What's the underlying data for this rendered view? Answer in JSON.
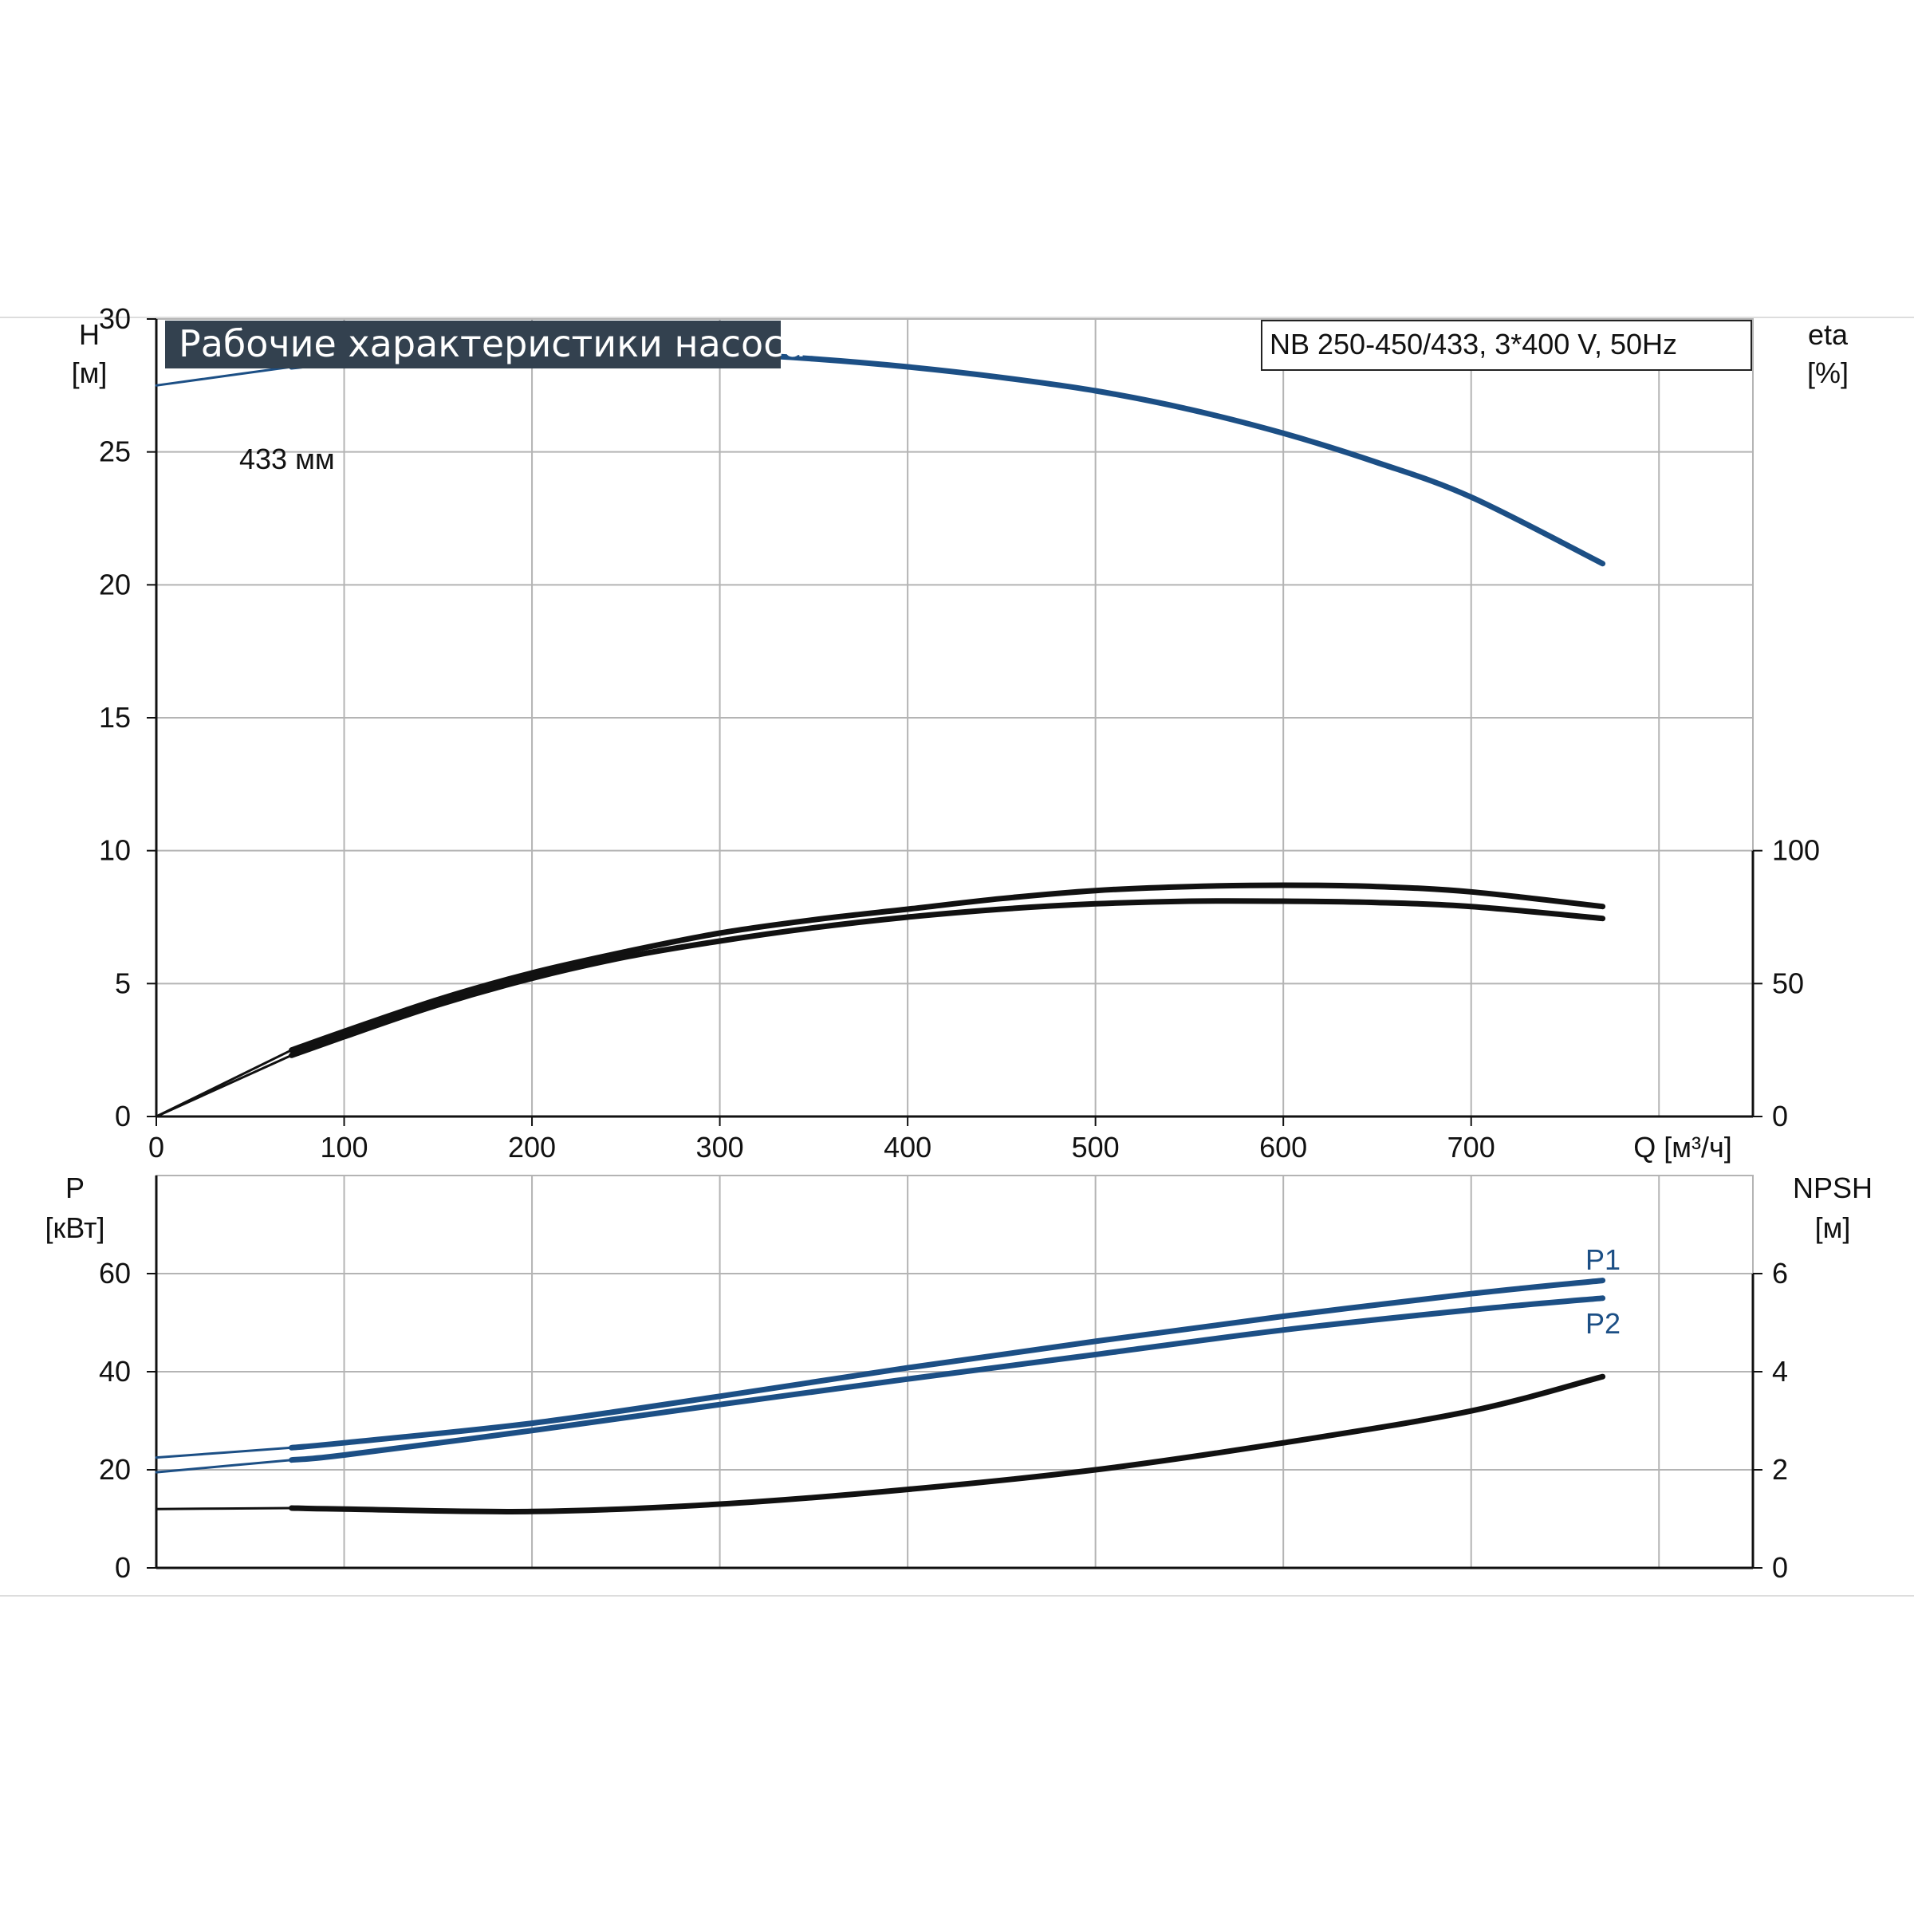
{
  "header": {
    "title": "Рабочие характеристики насоса",
    "model": "NB 250-450/433, 3*400 V, 50Hz"
  },
  "colors": {
    "blue": "#1c4f85",
    "black": "#111111",
    "grid": "#b4b4b4",
    "title_bg": "#33414f"
  },
  "chart_data": [
    {
      "type": "line",
      "panel": "top",
      "xlabel": "Q [м³/ч]",
      "xlim": [
        0,
        850
      ],
      "xticks": [
        "0",
        "100",
        "200",
        "300",
        "400",
        "500",
        "600",
        "700"
      ],
      "ylabel_left": [
        "H",
        "[м]"
      ],
      "ylim_left": [
        0,
        30
      ],
      "yticks_left": [
        "0",
        "5",
        "10",
        "15",
        "20",
        "25",
        "30"
      ],
      "ylabel_right": [
        "eta",
        "[%]"
      ],
      "ylim_right": [
        0,
        300
      ],
      "yticks_right": [
        "0",
        "50",
        "100"
      ],
      "grid": true,
      "series": [
        {
          "name": "433 мм",
          "axis": "left",
          "color": "#1c4f85",
          "x": [
            0,
            72,
            100,
            150,
            200,
            250,
            300,
            350,
            400,
            450,
            500,
            550,
            600,
            650,
            700,
            770
          ],
          "y": [
            27.5,
            28.2,
            28.4,
            28.7,
            28.8,
            28.8,
            28.7,
            28.5,
            28.2,
            27.8,
            27.3,
            26.6,
            25.7,
            24.6,
            23.3,
            20.8
          ]
        },
        {
          "name": "",
          "axis": "right",
          "color": "#111111",
          "x": [
            0,
            72,
            100,
            150,
            200,
            250,
            300,
            350,
            400,
            450,
            500,
            550,
            600,
            650,
            700,
            770
          ],
          "y": [
            0,
            25,
            32,
            44,
            54,
            62,
            69,
            74,
            78,
            82,
            85,
            86.5,
            87,
            86.5,
            84.5,
            79
          ]
        },
        {
          "name": "",
          "axis": "right",
          "color": "#111111",
          "x": [
            0,
            72,
            100,
            150,
            200,
            250,
            300,
            350,
            400,
            450,
            500,
            550,
            600,
            650,
            700,
            770
          ],
          "y": [
            0,
            23,
            30,
            42,
            52,
            60,
            66,
            71,
            75,
            78,
            80,
            81,
            81,
            80.5,
            79,
            74.5
          ]
        }
      ]
    },
    {
      "type": "line",
      "panel": "bottom",
      "xlim": [
        0,
        850
      ],
      "ylabel_left": [
        "P",
        "[кВт]"
      ],
      "ylim_left": [
        0,
        80
      ],
      "yticks_left": [
        "0",
        "20",
        "40",
        "60"
      ],
      "ylabel_right": [
        "NPSH",
        "[м]"
      ],
      "ylim_right": [
        0,
        8
      ],
      "yticks_right": [
        "0",
        "2",
        "4",
        "6"
      ],
      "grid": true,
      "series": [
        {
          "name": "P1",
          "axis": "left",
          "color": "#1c4f85",
          "x": [
            0,
            72,
            100,
            200,
            300,
            400,
            500,
            600,
            700,
            770
          ],
          "y": [
            22.5,
            24.5,
            25.5,
            29.5,
            35,
            40.8,
            46.2,
            51.3,
            55.9,
            58.6
          ]
        },
        {
          "name": "P2",
          "axis": "left",
          "color": "#1c4f85",
          "x": [
            0,
            72,
            100,
            200,
            300,
            400,
            500,
            600,
            700,
            770
          ],
          "y": [
            19.5,
            22,
            23,
            28,
            33.3,
            38.5,
            43.5,
            48.5,
            52.6,
            55
          ]
        },
        {
          "name": "",
          "axis": "right",
          "color": "#111111",
          "x": [
            0,
            72,
            100,
            200,
            300,
            400,
            500,
            600,
            700,
            770
          ],
          "y": [
            1.2,
            1.22,
            1.2,
            1.15,
            1.3,
            1.6,
            2.0,
            2.55,
            3.2,
            3.9
          ]
        }
      ]
    }
  ]
}
